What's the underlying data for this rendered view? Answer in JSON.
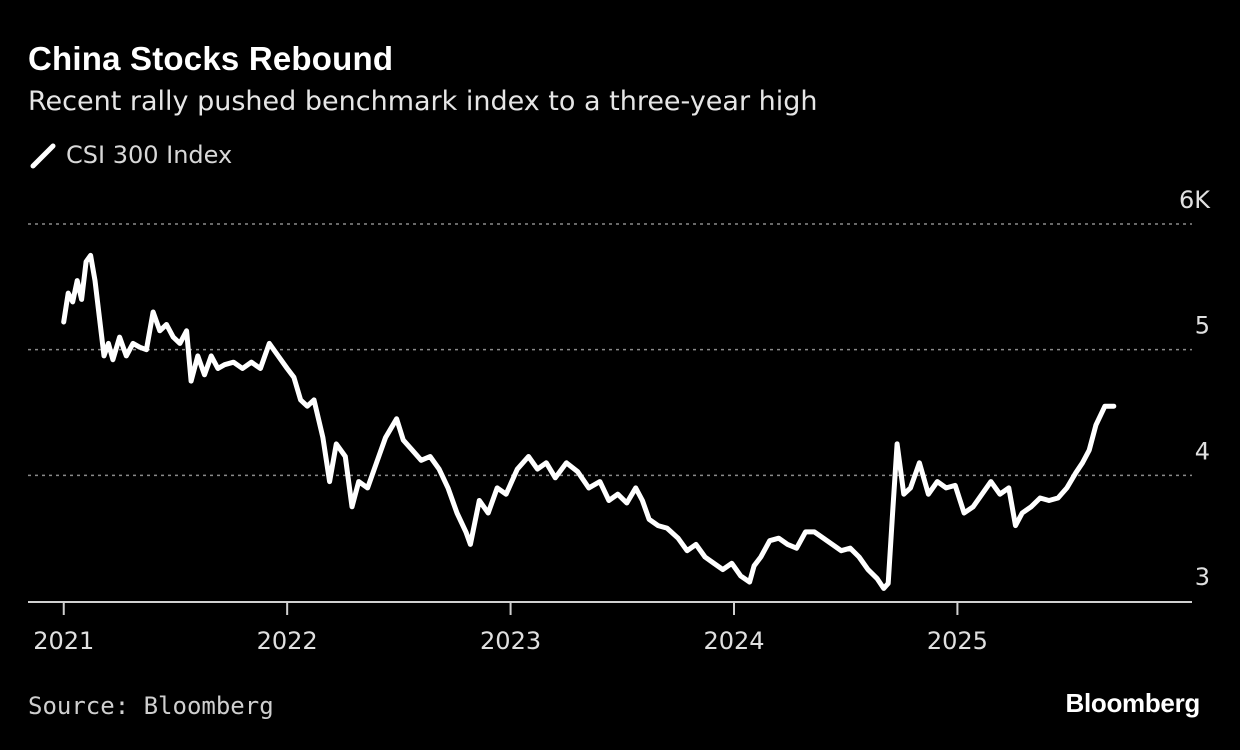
{
  "chart_data": {
    "type": "line",
    "title": "China Stocks Rebound",
    "subtitle": "Recent rally pushed benchmark index to a three-year high",
    "xlabel": "",
    "ylabel": "",
    "y_unit": "thousands of index points",
    "ylim": [
      3,
      6
    ],
    "y_ticks": [
      {
        "value": 3,
        "label": "3"
      },
      {
        "value": 4,
        "label": "4"
      },
      {
        "value": 5,
        "label": "5"
      },
      {
        "value": 6,
        "label": "6K"
      }
    ],
    "xlim": [
      2020.84,
      2026.05
    ],
    "x_ticks": [
      {
        "value": 2021,
        "label": "2021"
      },
      {
        "value": 2022,
        "label": "2022"
      },
      {
        "value": 2023,
        "label": "2023"
      },
      {
        "value": 2024,
        "label": "2024"
      },
      {
        "value": 2025,
        "label": "2025"
      }
    ],
    "grid": "horizontal-dotted",
    "series": [
      {
        "name": "CSI 300 Index",
        "color": "#ffffff",
        "points": [
          [
            2021.0,
            5.22
          ],
          [
            2021.02,
            5.45
          ],
          [
            2021.04,
            5.38
          ],
          [
            2021.06,
            5.55
          ],
          [
            2021.08,
            5.4
          ],
          [
            2021.1,
            5.7
          ],
          [
            2021.12,
            5.75
          ],
          [
            2021.14,
            5.55
          ],
          [
            2021.16,
            5.25
          ],
          [
            2021.18,
            4.95
          ],
          [
            2021.2,
            5.05
          ],
          [
            2021.22,
            4.92
          ],
          [
            2021.25,
            5.1
          ],
          [
            2021.28,
            4.95
          ],
          [
            2021.31,
            5.05
          ],
          [
            2021.34,
            5.02
          ],
          [
            2021.37,
            5.0
          ],
          [
            2021.4,
            5.3
          ],
          [
            2021.43,
            5.15
          ],
          [
            2021.46,
            5.2
          ],
          [
            2021.49,
            5.1
          ],
          [
            2021.52,
            5.05
          ],
          [
            2021.55,
            5.15
          ],
          [
            2021.57,
            4.75
          ],
          [
            2021.6,
            4.95
          ],
          [
            2021.63,
            4.8
          ],
          [
            2021.66,
            4.95
          ],
          [
            2021.69,
            4.85
          ],
          [
            2021.72,
            4.88
          ],
          [
            2021.76,
            4.9
          ],
          [
            2021.8,
            4.85
          ],
          [
            2021.84,
            4.9
          ],
          [
            2021.88,
            4.85
          ],
          [
            2021.92,
            5.05
          ],
          [
            2021.96,
            4.95
          ],
          [
            2022.0,
            4.85
          ],
          [
            2022.03,
            4.78
          ],
          [
            2022.06,
            4.6
          ],
          [
            2022.09,
            4.55
          ],
          [
            2022.12,
            4.6
          ],
          [
            2022.16,
            4.3
          ],
          [
            2022.19,
            3.95
          ],
          [
            2022.22,
            4.25
          ],
          [
            2022.26,
            4.15
          ],
          [
            2022.29,
            3.75
          ],
          [
            2022.32,
            3.95
          ],
          [
            2022.36,
            3.9
          ],
          [
            2022.4,
            4.1
          ],
          [
            2022.44,
            4.3
          ],
          [
            2022.49,
            4.45
          ],
          [
            2022.52,
            4.28
          ],
          [
            2022.56,
            4.2
          ],
          [
            2022.6,
            4.12
          ],
          [
            2022.64,
            4.15
          ],
          [
            2022.68,
            4.05
          ],
          [
            2022.72,
            3.9
          ],
          [
            2022.76,
            3.7
          ],
          [
            2022.8,
            3.55
          ],
          [
            2022.82,
            3.45
          ],
          [
            2022.86,
            3.8
          ],
          [
            2022.9,
            3.7
          ],
          [
            2022.94,
            3.9
          ],
          [
            2022.98,
            3.85
          ],
          [
            2023.03,
            4.05
          ],
          [
            2023.08,
            4.15
          ],
          [
            2023.12,
            4.05
          ],
          [
            2023.16,
            4.1
          ],
          [
            2023.2,
            3.98
          ],
          [
            2023.25,
            4.1
          ],
          [
            2023.3,
            4.03
          ],
          [
            2023.35,
            3.9
          ],
          [
            2023.4,
            3.95
          ],
          [
            2023.44,
            3.8
          ],
          [
            2023.48,
            3.85
          ],
          [
            2023.52,
            3.78
          ],
          [
            2023.56,
            3.9
          ],
          [
            2023.59,
            3.8
          ],
          [
            2023.62,
            3.65
          ],
          [
            2023.66,
            3.6
          ],
          [
            2023.7,
            3.58
          ],
          [
            2023.75,
            3.5
          ],
          [
            2023.79,
            3.4
          ],
          [
            2023.83,
            3.45
          ],
          [
            2023.87,
            3.35
          ],
          [
            2023.91,
            3.3
          ],
          [
            2023.95,
            3.25
          ],
          [
            2023.99,
            3.3
          ],
          [
            2024.03,
            3.2
          ],
          [
            2024.07,
            3.15
          ],
          [
            2024.09,
            3.28
          ],
          [
            2024.12,
            3.35
          ],
          [
            2024.16,
            3.48
          ],
          [
            2024.2,
            3.5
          ],
          [
            2024.24,
            3.45
          ],
          [
            2024.28,
            3.42
          ],
          [
            2024.32,
            3.55
          ],
          [
            2024.36,
            3.55
          ],
          [
            2024.4,
            3.5
          ],
          [
            2024.44,
            3.45
          ],
          [
            2024.48,
            3.4
          ],
          [
            2024.52,
            3.42
          ],
          [
            2024.56,
            3.35
          ],
          [
            2024.6,
            3.25
          ],
          [
            2024.64,
            3.18
          ],
          [
            2024.67,
            3.1
          ],
          [
            2024.69,
            3.14
          ],
          [
            2024.71,
            3.7
          ],
          [
            2024.73,
            4.25
          ],
          [
            2024.76,
            3.85
          ],
          [
            2024.79,
            3.9
          ],
          [
            2024.83,
            4.1
          ],
          [
            2024.87,
            3.85
          ],
          [
            2024.91,
            3.95
          ],
          [
            2024.95,
            3.9
          ],
          [
            2024.99,
            3.92
          ],
          [
            2025.03,
            3.7
          ],
          [
            2025.07,
            3.75
          ],
          [
            2025.11,
            3.85
          ],
          [
            2025.15,
            3.95
          ],
          [
            2025.19,
            3.85
          ],
          [
            2025.23,
            3.9
          ],
          [
            2025.26,
            3.6
          ],
          [
            2025.29,
            3.7
          ],
          [
            2025.33,
            3.75
          ],
          [
            2025.37,
            3.82
          ],
          [
            2025.41,
            3.8
          ],
          [
            2025.45,
            3.82
          ],
          [
            2025.49,
            3.9
          ],
          [
            2025.53,
            4.02
          ],
          [
            2025.56,
            4.1
          ],
          [
            2025.59,
            4.2
          ],
          [
            2025.62,
            4.4
          ],
          [
            2025.66,
            4.55
          ],
          [
            2025.7,
            4.55
          ]
        ]
      }
    ],
    "legend": [
      {
        "label": "CSI 300 Index",
        "position": "top-left"
      }
    ]
  },
  "source": "Source: Bloomberg",
  "brand": "Bloomberg",
  "colors": {
    "background": "#000000",
    "line": "#ffffff",
    "grid": "#8a8a8a",
    "text": "#ffffff",
    "muted_text": "#cfcfcf"
  }
}
